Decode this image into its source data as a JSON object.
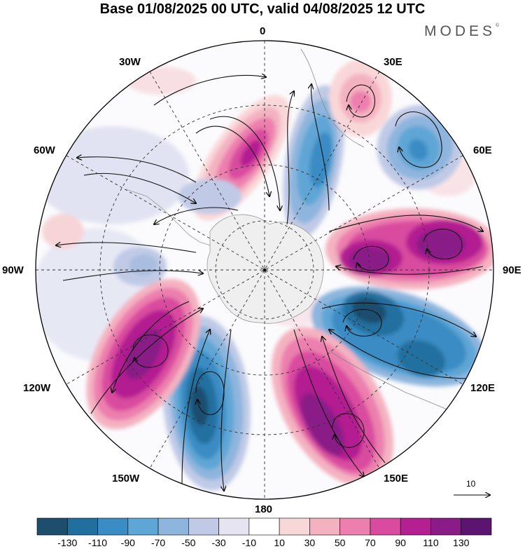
{
  "header": {
    "title": "Base 01/08/2025 00 UTC, valid 04/08/2025 12 UTC",
    "brand": "MODES",
    "brand_mark": "©"
  },
  "map": {
    "projection": "south-polar-stereographic",
    "longitude_labels": {
      "lon_0": "0",
      "lon_30e": "30E",
      "lon_60e": "60E",
      "lon_90e": "90E",
      "lon_120e": "120E",
      "lon_150e": "150E",
      "lon_180": "180",
      "lon_150w": "150W",
      "lon_120w": "120W",
      "lon_90w": "90W",
      "lon_60w": "60W",
      "lon_30w": "30W"
    },
    "reference_vector": {
      "label": "10"
    }
  },
  "colorbar": {
    "labels": [
      "-130",
      "-110",
      "-90",
      "-70",
      "-50",
      "-30",
      "-10",
      "10",
      "30",
      "50",
      "70",
      "90",
      "110",
      "130"
    ],
    "colors": [
      "#1d4e6e",
      "#216f9f",
      "#3a8cc4",
      "#5ea6d6",
      "#8eb5dd",
      "#c0cae6",
      "#e6e4f1",
      "#ffffff",
      "#f9d7d9",
      "#f4b2c1",
      "#ec7fae",
      "#d94b9f",
      "#b41f91",
      "#8a1b87",
      "#5b1570"
    ]
  },
  "anomaly_centers": [
    {
      "name": "cell-30w-positive",
      "value": 95
    },
    {
      "name": "cell-0-negative",
      "value": -80
    },
    {
      "name": "cell-30e-positive",
      "value": 45
    },
    {
      "name": "cell-60e-negative",
      "value": -65
    },
    {
      "name": "cell-90e-positive",
      "value": 120
    },
    {
      "name": "cell-120e-negative",
      "value": -115
    },
    {
      "name": "cell-150e-positive",
      "value": 115
    },
    {
      "name": "cell-180-negative",
      "value": -120
    },
    {
      "name": "cell-120w-positive",
      "value": 115
    },
    {
      "name": "cell-60w-negative",
      "value": -30
    },
    {
      "name": "cell-90w-negative",
      "value": -40
    },
    {
      "name": "cell-90w-positive",
      "value": 20
    }
  ]
}
